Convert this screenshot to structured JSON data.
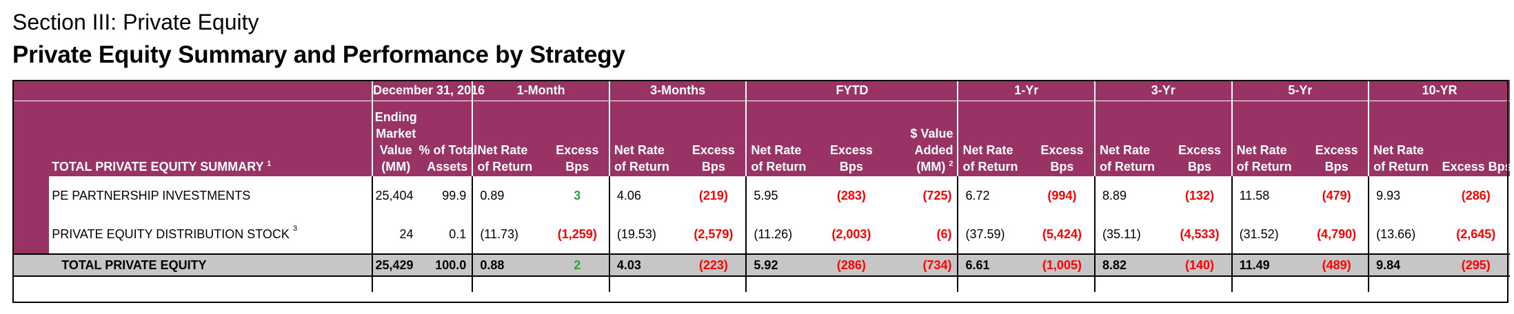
{
  "section_title": "Section III: Private Equity",
  "page_title": "Private Equity Summary and Performance by Strategy",
  "table": {
    "group_headers": {
      "date": "December 31, 2016",
      "m1": "1-Month",
      "m3": "3-Months",
      "fytd": "FYTD",
      "y1": "1-Yr",
      "y3": "3-Yr",
      "y5": "5-Yr",
      "y10": "10-YR"
    },
    "summary_label": "TOTAL PRIVATE EQUITY SUMMARY",
    "summary_sup": "1",
    "col_headers": {
      "emv_l1": "Ending",
      "emv_l2": "Market",
      "emv_l3": "Value",
      "emv_l4": "(MM)",
      "pct_l1": "% of Total",
      "pct_l2": "Assets",
      "nr_l1": "Net  Rate",
      "nr_l2": "of Return",
      "ex_l1": "Excess",
      "ex_l2": "Bps",
      "va_l1": "$ Value",
      "va_l2": "Added",
      "va_l3": "(MM)",
      "va_sup": "2",
      "nr10_l1": "Net  Rate",
      "nr10_l2": "of Return",
      "ex10": "Excess Bps"
    },
    "rows": [
      {
        "name": "PE PARTNERSHIP INVESTMENTS",
        "sup": "",
        "emv": "25,404",
        "pct": "99.9",
        "m1_nr": "0.89",
        "m1_ex": "3",
        "m3_nr": "4.06",
        "m3_ex": "(219)",
        "fytd_nr": "5.95",
        "fytd_ex": "(283)",
        "fytd_va": "(725)",
        "y1_nr": "6.72",
        "y1_ex": "(994)",
        "y3_nr": "8.89",
        "y3_ex": "(132)",
        "y5_nr": "11.58",
        "y5_ex": "(479)",
        "y10_nr": "9.93",
        "y10_ex": "(286)"
      },
      {
        "name": "PRIVATE EQUITY DISTRIBUTION STOCK",
        "sup": "3",
        "emv": "24",
        "pct": "0.1",
        "m1_nr": "(11.73)",
        "m1_ex": "(1,259)",
        "m3_nr": "(19.53)",
        "m3_ex": "(2,579)",
        "fytd_nr": "(11.26)",
        "fytd_ex": "(2,003)",
        "fytd_va": "(6)",
        "y1_nr": "(37.59)",
        "y1_ex": "(5,424)",
        "y3_nr": "(35.11)",
        "y3_ex": "(4,533)",
        "y5_nr": "(31.52)",
        "y5_ex": "(4,790)",
        "y10_nr": "(13.66)",
        "y10_ex": "(2,645)"
      }
    ],
    "total": {
      "name": "TOTAL PRIVATE EQUITY",
      "emv": "25,429",
      "pct": "100.0",
      "m1_nr": "0.88",
      "m1_ex": "2",
      "m3_nr": "4.03",
      "m3_ex": "(223)",
      "fytd_nr": "5.92",
      "fytd_ex": "(286)",
      "fytd_va": "(734)",
      "y1_nr": "6.61",
      "y1_ex": "(1,005)",
      "y3_nr": "8.82",
      "y3_ex": "(140)",
      "y5_nr": "11.49",
      "y5_ex": "(489)",
      "y10_nr": "9.84",
      "y10_ex": "(295)"
    },
    "colors": {
      "header_bg": "#993366",
      "negative": "#ff0000",
      "positive": "#2e9e3a",
      "total_bg": "#c6c6c6"
    }
  }
}
